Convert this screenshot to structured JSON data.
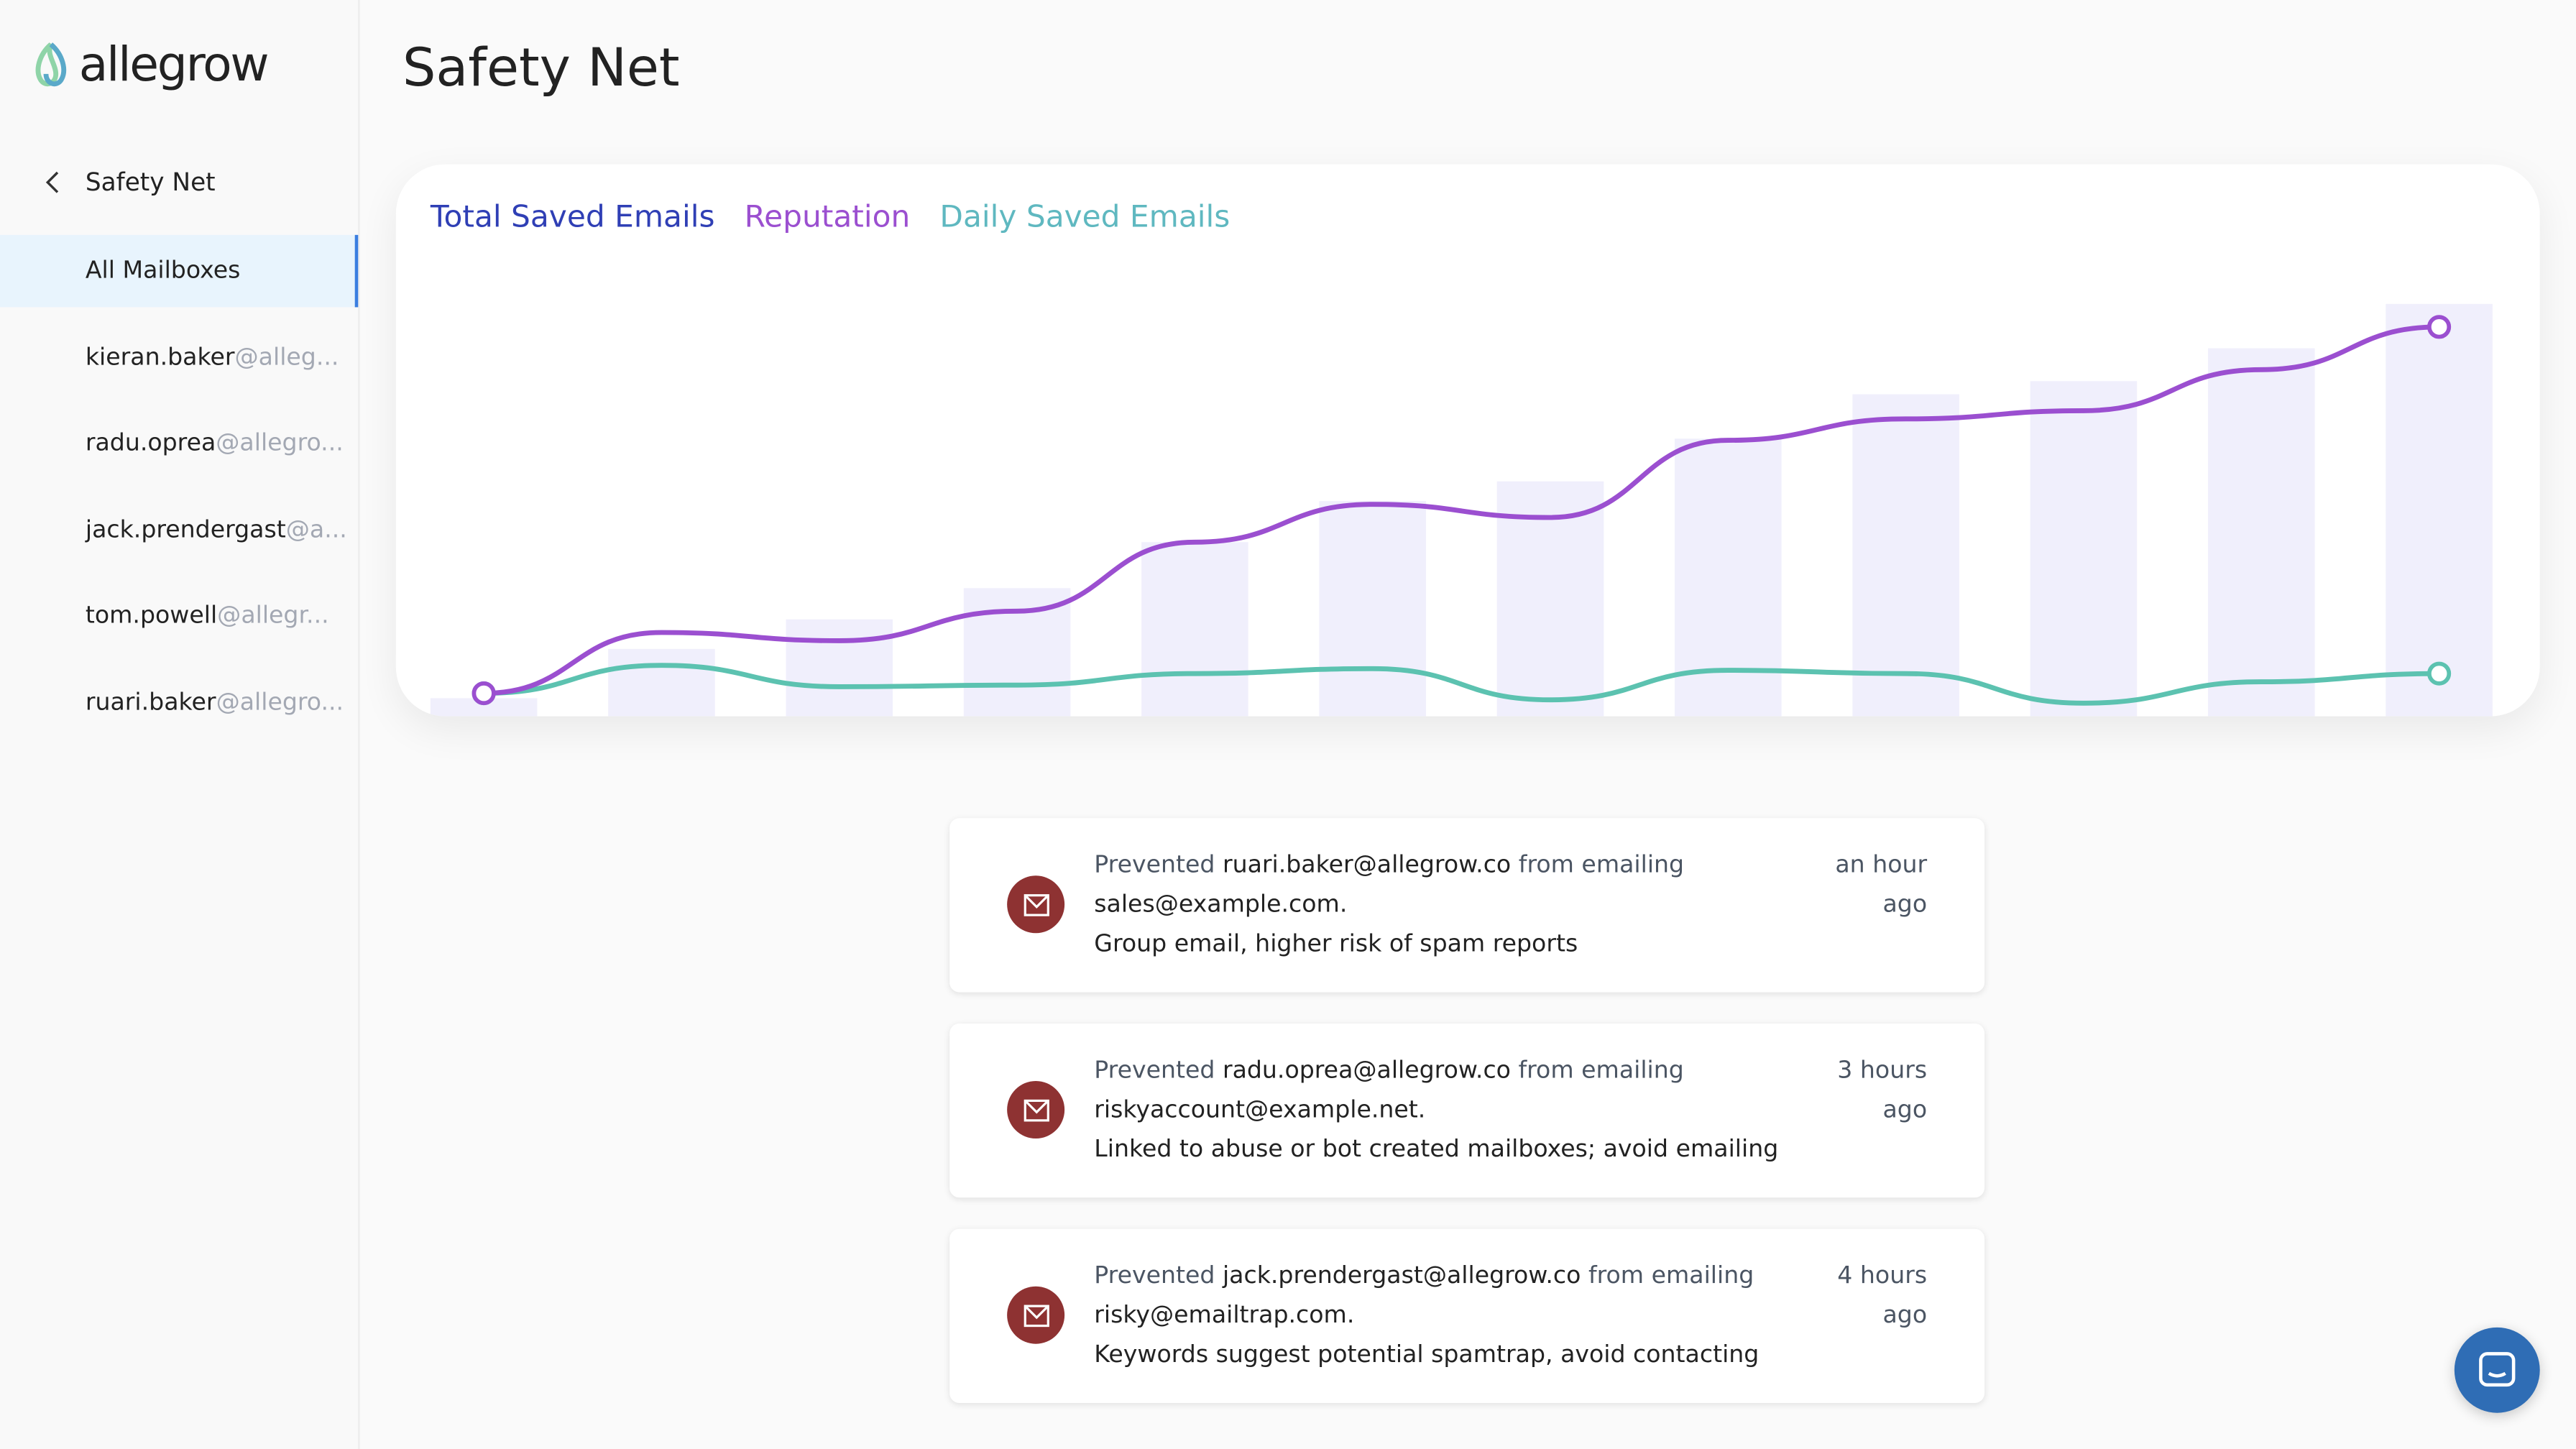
{
  "app": {
    "logo_text": "allegrow"
  },
  "page": {
    "title": "Safety Net"
  },
  "sidebar": {
    "back_label": "Safety Net",
    "items": [
      {
        "label": "All Mailboxes",
        "domain": "",
        "active": true
      },
      {
        "label": "kieran.baker",
        "domain": "@alleg..."
      },
      {
        "label": "radu.oprea",
        "domain": "@allegro..."
      },
      {
        "label": "jack.prendergast",
        "domain": "@a..."
      },
      {
        "label": "tom.powell",
        "domain": "@allegr..."
      },
      {
        "label": "ruari.baker",
        "domain": "@allegro..."
      }
    ]
  },
  "chart": {
    "tabs": [
      {
        "label": "Total Saved Emails",
        "color": "#2f3fb5"
      },
      {
        "label": "Reputation",
        "color": "#9b4fd0"
      },
      {
        "label": "Daily Saved Emails",
        "color": "#5fb8c0"
      }
    ]
  },
  "chart_data": {
    "type": "bar",
    "grid": false,
    "ylim": [
      0,
      266
    ],
    "series": [
      {
        "type": "bar",
        "color": "#f0effc",
        "values": [
          11,
          41,
          59,
          78,
          106,
          131,
          143,
          169,
          196,
          204,
          224,
          251
        ]
      },
      {
        "type": "line",
        "color": "#9b4fd0",
        "values": [
          14,
          51,
          46,
          64,
          106,
          129,
          121,
          168,
          181,
          186,
          211,
          237
        ]
      },
      {
        "type": "line",
        "color": "#5cc2b0",
        "values": [
          14,
          31,
          18,
          19,
          26,
          29,
          10,
          28,
          26,
          8,
          21,
          26
        ]
      }
    ]
  },
  "feed": {
    "prefix": "Prevented ",
    "middle": " from emailing",
    "items": [
      {
        "sender": "ruari.baker@allegrow.co",
        "recipient": "sales@example.com.",
        "reason": "Group email, higher risk of spam reports",
        "time": "an hour ago"
      },
      {
        "sender": "radu.oprea@allegrow.co",
        "recipient": "riskyaccount@example.net.",
        "reason": "Linked to abuse or bot created mailboxes; avoid emailing",
        "time": "3 hours ago"
      },
      {
        "sender": "jack.prendergast@allegrow.co",
        "recipient": "risky@emailtrap.com.",
        "reason": "Keywords suggest potential spamtrap, avoid contacting",
        "time": "4 hours ago"
      }
    ]
  }
}
